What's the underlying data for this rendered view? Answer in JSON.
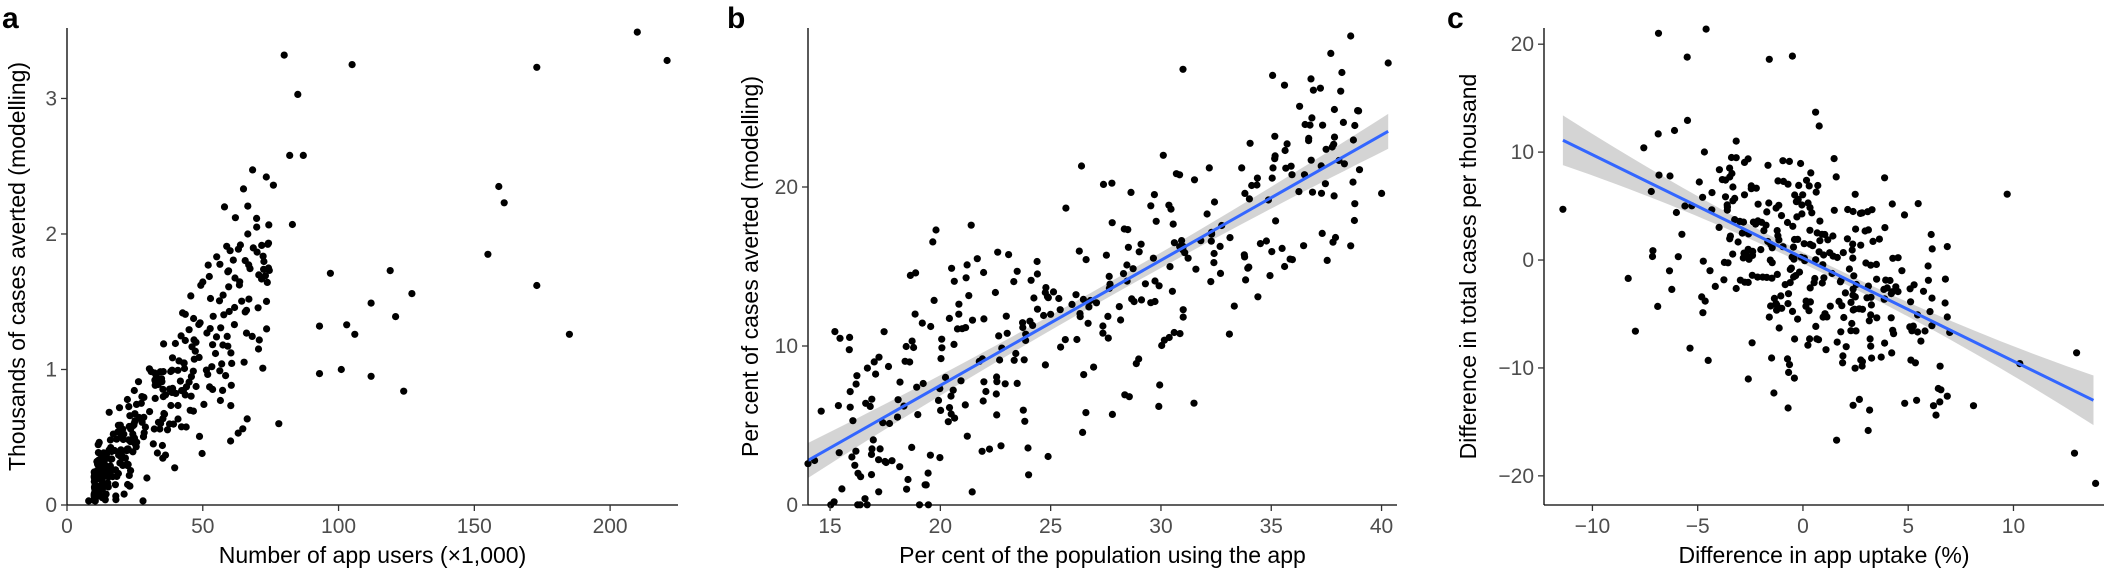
{
  "chart_data": [
    {
      "panel": "a",
      "type": "scatter",
      "xlabel": "Number of app users (×1,000)",
      "ylabel": "Thousands of cases averted (modelling)",
      "xlim": [
        0,
        225
      ],
      "ylim": [
        0,
        3.52
      ],
      "xticks": [
        0,
        50,
        100,
        150,
        200
      ],
      "yticks": [
        0,
        1,
        2,
        3
      ],
      "grid": false,
      "legend": "none",
      "colors": {
        "points": "#000000"
      },
      "highlighted_points": [
        [
          210,
          3.49
        ],
        [
          221,
          3.28
        ],
        [
          80,
          3.32
        ],
        [
          105,
          3.25
        ],
        [
          173,
          3.23
        ],
        [
          85,
          3.03
        ],
        [
          82,
          2.58
        ],
        [
          87,
          2.58
        ],
        [
          159,
          2.35
        ],
        [
          161,
          2.23
        ],
        [
          155,
          1.85
        ],
        [
          173,
          1.62
        ],
        [
          185,
          1.26
        ],
        [
          124,
          0.84
        ],
        [
          127,
          1.56
        ],
        [
          119,
          1.73
        ],
        [
          121,
          1.39
        ],
        [
          112,
          1.49
        ],
        [
          103,
          1.33
        ],
        [
          106,
          1.26
        ],
        [
          97,
          1.71
        ],
        [
          93,
          1.32
        ],
        [
          93,
          0.97
        ],
        [
          101,
          1.0
        ],
        [
          112,
          0.95
        ],
        [
          78,
          0.6
        ],
        [
          58,
          2.2
        ],
        [
          62,
          2.12
        ],
        [
          76,
          2.36
        ],
        [
          83,
          2.07
        ],
        [
          11,
          0.32
        ],
        [
          8,
          0.03
        ],
        [
          18,
          0.04
        ],
        [
          28,
          0.03
        ],
        [
          23,
          0.14
        ]
      ],
      "scatter_model": {
        "n": 330,
        "x_range": [
          10,
          75
        ],
        "slope": 0.0265,
        "intercept": -0.14,
        "sd_scale": 0.05,
        "sd_base": 0.08
      }
    },
    {
      "panel": "b",
      "type": "scatter",
      "xlabel": "Per cent of the population using the app",
      "ylabel": "Per cent of cases averted (modelling)",
      "xlim": [
        14,
        40.7
      ],
      "ylim": [
        0,
        30
      ],
      "xticks": [
        15,
        20,
        25,
        30,
        35,
        40
      ],
      "yticks": [
        0,
        10,
        20
      ],
      "grid": false,
      "legend": "none",
      "colors": {
        "points": "#000000",
        "fit": "#3366FF",
        "ci_band": "#bdbdbd"
      },
      "regression": {
        "x0": 14,
        "y0": 2.8,
        "x1": 40.3,
        "y1": 23.5,
        "ci_halfwidth_ends": 1.1,
        "ci_halfwidth_mid": 0.45
      },
      "highlighted_points": [
        [
          38.6,
          29.5
        ],
        [
          40.3,
          27.8
        ],
        [
          37.7,
          28.4
        ],
        [
          38.2,
          27.2
        ],
        [
          36.8,
          26.8
        ],
        [
          35.6,
          26.4
        ],
        [
          31.0,
          27.4
        ],
        [
          14.6,
          5.9
        ],
        [
          14.0,
          2.6
        ],
        [
          14.3,
          2.8
        ],
        [
          24.0,
          1.9
        ],
        [
          31.5,
          6.4
        ],
        [
          27.8,
          5.7
        ],
        [
          29.9,
          6.2
        ],
        [
          17.0,
          9.0
        ],
        [
          40.0,
          19.6
        ],
        [
          38.6,
          16.3
        ],
        [
          21.4,
          17.6
        ],
        [
          22.6,
          15.9
        ],
        [
          26.5,
          8.2
        ]
      ],
      "scatter_model": {
        "n": 330,
        "x_range": [
          15,
          39
        ],
        "slope": 0.787,
        "intercept": -8.2,
        "sd": 3.6
      }
    },
    {
      "panel": "c",
      "type": "scatter",
      "xlabel": "Difference in app uptake (%)",
      "ylabel": "Difference in total cases per thousand",
      "xlim": [
        -12.3,
        14.3
      ],
      "ylim": [
        -22.7,
        21.5
      ],
      "xticks": [
        -10,
        -5,
        0,
        5,
        10
      ],
      "yticks": [
        -20,
        -10,
        0,
        10,
        20
      ],
      "grid": false,
      "legend": "none",
      "colors": {
        "points": "#000000",
        "fit": "#3366FF",
        "ci_band": "#bdbdbd"
      },
      "regression": {
        "x0": -11.4,
        "y0": 11.1,
        "x1": 13.8,
        "y1": -13.0,
        "ci_halfwidth_ends": 2.3,
        "ci_halfwidth_mid": 0.5
      },
      "highlighted_points": [
        [
          -11.4,
          4.7
        ],
        [
          -8.3,
          -1.7
        ],
        [
          -4.6,
          21.4
        ],
        [
          -5.5,
          18.8
        ],
        [
          -1.6,
          18.6
        ],
        [
          -0.5,
          18.9
        ],
        [
          9.7,
          6.1
        ],
        [
          13.9,
          -20.7
        ],
        [
          12.9,
          -17.9
        ],
        [
          13.0,
          -8.6
        ],
        [
          10.3,
          -9.6
        ],
        [
          8.1,
          -13.5
        ],
        [
          6.2,
          -13.5
        ],
        [
          5.4,
          -13.0
        ],
        [
          1.6,
          -16.7
        ],
        [
          3.1,
          -15.8
        ],
        [
          -6.1,
          12.0
        ],
        [
          -6.9,
          -4.3
        ],
        [
          -4.5,
          -9.3
        ],
        [
          0.6,
          13.7
        ]
      ],
      "scatter_model": {
        "n": 330,
        "x_range": [
          -8,
          7
        ],
        "slope": -0.85,
        "intercept": 0.0,
        "sd": 5.0
      }
    }
  ]
}
